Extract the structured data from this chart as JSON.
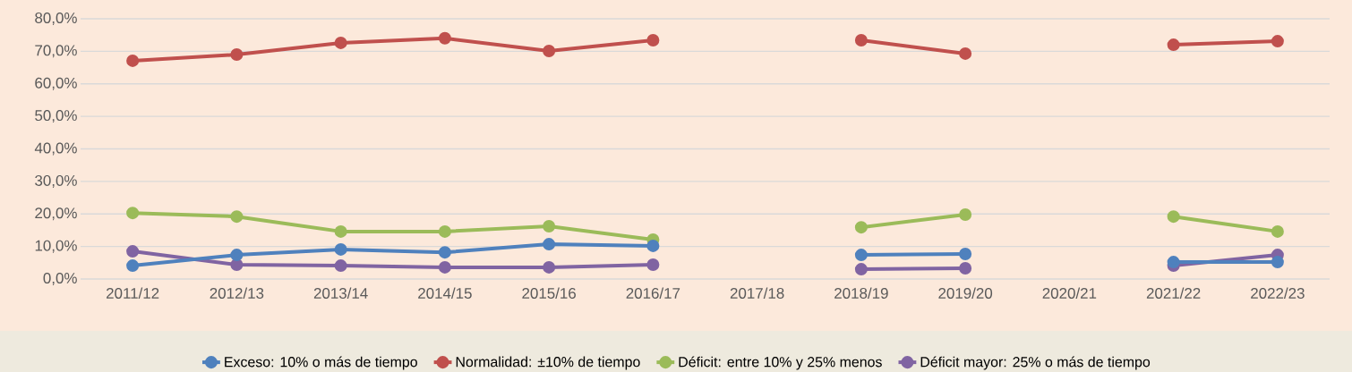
{
  "chart_data": {
    "type": "line",
    "categories": [
      "2011/12",
      "2012/13",
      "2013/14",
      "2014/15",
      "2015/16",
      "2016/17",
      "2017/18",
      "2018/19",
      "2019/20",
      "2020/21",
      "2021/22",
      "2022/23"
    ],
    "series": [
      {
        "name": "Exceso: 10% o más de tiempo",
        "color": "#4f81bd",
        "values": [
          4.1,
          7.4,
          9.1,
          8.2,
          10.7,
          10.2,
          null,
          7.4,
          7.7,
          null,
          5.2,
          5.2
        ]
      },
      {
        "name": "Normalidad: ±10% de tiempo",
        "color": "#c0504d",
        "values": [
          67.1,
          69.0,
          72.6,
          74.0,
          70.1,
          73.4,
          null,
          73.4,
          69.3,
          null,
          72.0,
          73.1
        ]
      },
      {
        "name": "Déficit: entre 10% y 25% menos",
        "color": "#9bbb59",
        "values": [
          20.3,
          19.2,
          14.6,
          14.6,
          16.2,
          12.1,
          null,
          15.9,
          19.8,
          null,
          19.2,
          14.6
        ]
      },
      {
        "name": "Déficit mayor: 25% o más de tiempo",
        "color": "#8064a2",
        "values": [
          8.5,
          4.4,
          4.1,
          3.6,
          3.6,
          4.4,
          null,
          3.0,
          3.3,
          null,
          4.1,
          7.4
        ]
      }
    ],
    "ylim": [
      0,
      80
    ],
    "yticks": [
      {
        "value": 0,
        "label": "0,0%"
      },
      {
        "value": 10,
        "label": "10,0%"
      },
      {
        "value": 20,
        "label": "20,0%"
      },
      {
        "value": 30,
        "label": "30,0%"
      },
      {
        "value": 40,
        "label": "40,0%"
      },
      {
        "value": 50,
        "label": "50,0%"
      },
      {
        "value": 60,
        "label": "60,0%"
      },
      {
        "value": 70,
        "label": "70,0%"
      },
      {
        "value": 80,
        "label": "80,0%"
      }
    ],
    "grid": "y",
    "legend": "bottom",
    "marker": "circle",
    "line_style": "solid"
  }
}
